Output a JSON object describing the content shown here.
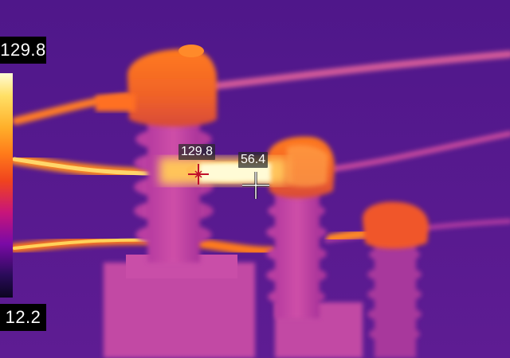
{
  "thermal_view": {
    "scale_max": "129.8",
    "scale_min": "12.2",
    "spot_hot": {
      "label": "129.8",
      "icon": "hot-spot-marker-icon"
    },
    "spot_center": {
      "label": "56.4",
      "icon": "crosshair-icon"
    },
    "colors": {
      "background": "#5a1a8f",
      "hot": "#fffbd6",
      "warm": "#ff8a1f",
      "cool": "#b83aa8"
    }
  }
}
